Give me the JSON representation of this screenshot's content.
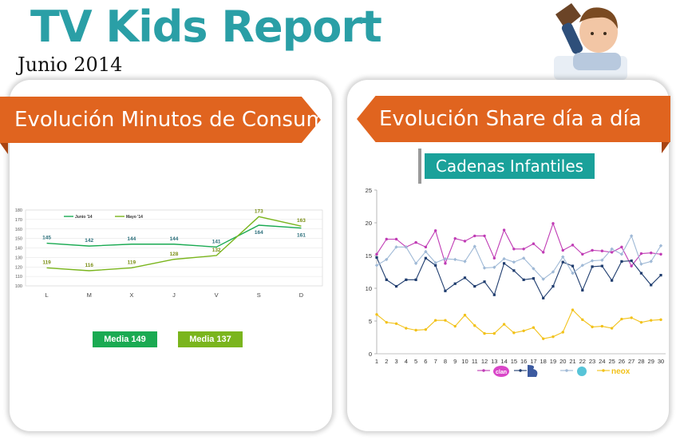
{
  "header": {
    "title": "TV Kids Report",
    "subtitle": "Junio 2014"
  },
  "left_panel": {
    "ribbon": "Evolución Minutos de Consumo",
    "media_junio": "Media 149",
    "media_mayo": "Media 137"
  },
  "right_panel": {
    "ribbon": "Evolución Share día a día",
    "pill": "Cadenas Infantiles",
    "legend": [
      "clan",
      "Boing",
      "Disney Channel",
      "neox"
    ]
  },
  "colors": {
    "junio": "#1aaa52",
    "mayo": "#7ab51d",
    "clan": "#c03cb5",
    "boing": "#1e3c6e",
    "disney": "#9fb9d6",
    "neox": "#f2c21a",
    "ribbon": "#e0641f",
    "title": "#2a9fa6"
  },
  "chart_data": [
    {
      "type": "line",
      "categories": [
        "L",
        "M",
        "X",
        "J",
        "V",
        "S",
        "D"
      ],
      "series": [
        {
          "name": "Junio '14",
          "values": [
            145,
            142,
            144,
            144,
            141,
            164,
            161
          ]
        },
        {
          "name": "Mayo '14",
          "values": [
            119,
            116,
            119,
            128,
            132,
            173,
            163
          ]
        }
      ],
      "ylim": [
        100,
        180
      ],
      "yticks": [
        100,
        110,
        120,
        130,
        140,
        150,
        160,
        170,
        180
      ],
      "grid": true,
      "legend": "top-left"
    },
    {
      "type": "line",
      "x": [
        1,
        2,
        3,
        4,
        5,
        6,
        7,
        8,
        9,
        10,
        11,
        12,
        13,
        14,
        15,
        16,
        17,
        18,
        19,
        20,
        21,
        22,
        23,
        24,
        25,
        26,
        27,
        28,
        29,
        30
      ],
      "series": [
        {
          "name": "clan",
          "values": [
            15.2,
            17.5,
            17.5,
            16.3,
            17.0,
            16.3,
            18.8,
            13.8,
            17.6,
            17.2,
            18.0,
            18.0,
            14.6,
            18.9,
            16.0,
            16.0,
            16.8,
            15.5,
            19.9,
            15.8,
            16.6,
            15.2,
            15.8,
            15.7,
            15.5,
            16.3,
            13.4,
            15.3,
            15.4,
            15.2
          ]
        },
        {
          "name": "Boing",
          "values": [
            14.7,
            11.3,
            10.3,
            11.3,
            11.3,
            14.6,
            13.5,
            9.6,
            10.7,
            11.6,
            10.3,
            11.0,
            9.0,
            13.8,
            12.7,
            11.3,
            11.5,
            8.5,
            10.3,
            14.0,
            13.4,
            9.7,
            13.3,
            13.4,
            11.2,
            14.1,
            14.2,
            12.3,
            10.5,
            12.0
          ]
        },
        {
          "name": "Disney Channel",
          "values": [
            13.5,
            14.4,
            16.3,
            16.3,
            13.8,
            15.6,
            13.9,
            14.5,
            14.4,
            14.1,
            16.4,
            13.1,
            13.2,
            14.5,
            14.0,
            14.6,
            13.0,
            11.4,
            12.5,
            14.8,
            12.3,
            13.5,
            14.2,
            14.3,
            16.0,
            15.2,
            18.0,
            13.7,
            14.1,
            16.5
          ]
        },
        {
          "name": "neox",
          "values": [
            6.0,
            4.8,
            4.6,
            3.9,
            3.6,
            3.7,
            5.1,
            5.1,
            4.2,
            5.9,
            4.3,
            3.1,
            3.1,
            4.5,
            3.2,
            3.5,
            4.0,
            2.3,
            2.6,
            3.3,
            6.7,
            5.2,
            4.1,
            4.2,
            3.9,
            5.3,
            5.5,
            4.8,
            5.1,
            5.2
          ]
        }
      ],
      "ylim": [
        0,
        25
      ],
      "yticks": [
        0,
        5,
        10,
        15,
        20,
        25
      ],
      "grid": false,
      "legend": "bottom"
    }
  ]
}
